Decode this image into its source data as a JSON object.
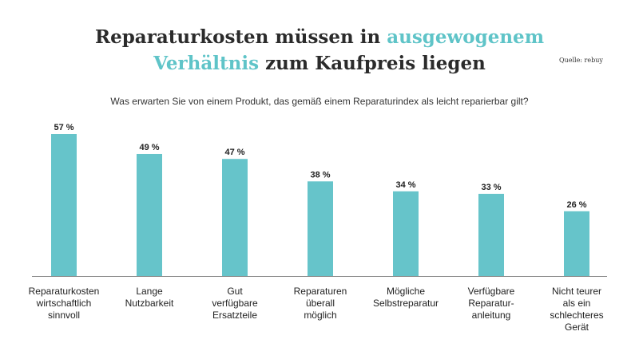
{
  "title": {
    "line1_part1": "Reparaturkosten müssen in ",
    "line1_accent": "ausgewogenem",
    "line2_accent": "Verhältnis",
    "line2_part2": " zum Kaufpreis liegen"
  },
  "source": "Quelle: rebuy",
  "subtitle": "Was erwarten Sie von einem Produkt, das gemäß einem Reparaturindex als leicht reparierbar gilt?",
  "colors": {
    "bar": "#66c4ca",
    "accent": "#5fc4c8"
  },
  "chart_data": {
    "type": "bar",
    "categories": [
      [
        "Reparaturkosten",
        "wirtschaftlich",
        "sinnvoll"
      ],
      [
        "Lange",
        "Nutzbarkeit"
      ],
      [
        "Gut",
        "verfügbare",
        "Ersatzteile"
      ],
      [
        "Reparaturen",
        "überall",
        "möglich"
      ],
      [
        "Mögliche",
        "Selbstreparatur"
      ],
      [
        "Verfügbare",
        "Reparatur-",
        "anleitung"
      ],
      [
        "Nicht teurer",
        "als ein",
        "schlechteres",
        "Gerät"
      ]
    ],
    "values": [
      57,
      49,
      47,
      38,
      34,
      33,
      26
    ],
    "value_labels": [
      "57 %",
      "49 %",
      "47 %",
      "38 %",
      "34 %",
      "33 %",
      "26 %"
    ],
    "ylim": [
      0,
      57
    ],
    "grid": false,
    "legend": "none"
  }
}
